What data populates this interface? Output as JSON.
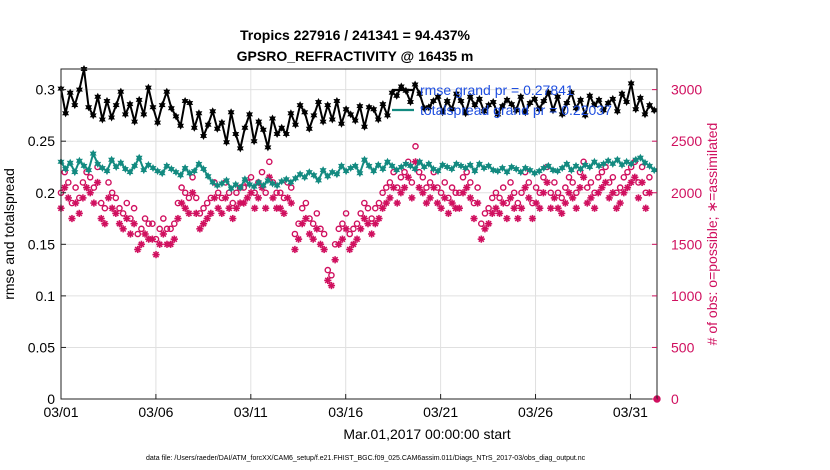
{
  "chart_data": {
    "type": "line",
    "title": "Tropics 227916 / 241341 = 94.437%",
    "subtitle": "GPSRO_REFRACTIVITY @ 16435 m",
    "xlabel": "Mar.01,2017 00:00:00 start",
    "ylabel_left": "rmse and totalspread",
    "ylabel_right": "# of obs: o=possible; ∗=assimilated",
    "x_ticks": [
      "03/01",
      "03/06",
      "03/11",
      "03/16",
      "03/21",
      "03/26",
      "03/31"
    ],
    "xlim": [
      0,
      31.4
    ],
    "ylim_left": [
      0,
      0.32
    ],
    "ylim_right": [
      0,
      3200
    ],
    "y_ticks_left": [
      "0",
      "0.05",
      "0.1",
      "0.15",
      "0.2",
      "0.25",
      "0.3"
    ],
    "y_ticks_right": [
      "0",
      "500",
      "1000",
      "1500",
      "2000",
      "2500",
      "3000"
    ],
    "legend": [
      {
        "label": "rmse grand pr = 0.27841",
        "color": "#000000"
      },
      {
        "label": "totalspread grand pr = 0.22037",
        "color": "#138a80"
      }
    ],
    "series": [
      {
        "name": "rmse",
        "axis": "left",
        "color": "#000000",
        "marker": "hexagram",
        "values": [
          0.301,
          0.277,
          0.297,
          0.285,
          0.3,
          0.32,
          0.283,
          0.275,
          0.293,
          0.271,
          0.289,
          0.273,
          0.285,
          0.298,
          0.276,
          0.286,
          0.269,
          0.29,
          0.276,
          0.302,
          0.283,
          0.268,
          0.285,
          0.298,
          0.282,
          0.274,
          0.265,
          0.289,
          0.287,
          0.263,
          0.277,
          0.255,
          0.266,
          0.279,
          0.262,
          0.268,
          0.249,
          0.278,
          0.257,
          0.243,
          0.263,
          0.276,
          0.25,
          0.269,
          0.261,
          0.244,
          0.272,
          0.257,
          0.263,
          0.257,
          0.277,
          0.266,
          0.285,
          0.278,
          0.262,
          0.275,
          0.288,
          0.269,
          0.285,
          0.271,
          0.289,
          0.267,
          0.281,
          0.276,
          0.27,
          0.284,
          0.264,
          0.283,
          0.281,
          0.271,
          0.286,
          0.275,
          0.297,
          0.294,
          0.303,
          0.299,
          0.288,
          0.305,
          0.296,
          0.282,
          0.283,
          0.289,
          0.293,
          0.278,
          0.289,
          0.281,
          0.296,
          0.289,
          0.277,
          0.293,
          0.285,
          0.291,
          0.279,
          0.285,
          0.288,
          0.276,
          0.284,
          0.29,
          0.286,
          0.28,
          0.293,
          0.278,
          0.287,
          0.291,
          0.281,
          0.289,
          0.297,
          0.28,
          0.293,
          0.276,
          0.287,
          0.297,
          0.282,
          0.29,
          0.275,
          0.294,
          0.285,
          0.29,
          0.28,
          0.287,
          0.291,
          0.279,
          0.296,
          0.288,
          0.306,
          0.281,
          0.292,
          0.276,
          0.285,
          0.28
        ]
      },
      {
        "name": "totalspread",
        "axis": "left",
        "color": "#138a80",
        "marker": "hexagram",
        "values": [
          0.23,
          0.223,
          0.229,
          0.22,
          0.231,
          0.226,
          0.222,
          0.238,
          0.228,
          0.224,
          0.221,
          0.232,
          0.225,
          0.229,
          0.223,
          0.22,
          0.226,
          0.234,
          0.222,
          0.227,
          0.224,
          0.221,
          0.219,
          0.226,
          0.223,
          0.22,
          0.217,
          0.224,
          0.219,
          0.221,
          0.228,
          0.223,
          0.216,
          0.21,
          0.207,
          0.209,
          0.212,
          0.204,
          0.208,
          0.205,
          0.213,
          0.208,
          0.206,
          0.21,
          0.207,
          0.212,
          0.209,
          0.207,
          0.211,
          0.213,
          0.21,
          0.214,
          0.218,
          0.215,
          0.22,
          0.217,
          0.212,
          0.222,
          0.216,
          0.22,
          0.218,
          0.226,
          0.221,
          0.224,
          0.226,
          0.219,
          0.232,
          0.226,
          0.221,
          0.227,
          0.223,
          0.23,
          0.226,
          0.222,
          0.225,
          0.228,
          0.226,
          0.223,
          0.23,
          0.225,
          0.228,
          0.223,
          0.221,
          0.227,
          0.225,
          0.223,
          0.228,
          0.226,
          0.224,
          0.227,
          0.221,
          0.228,
          0.224,
          0.226,
          0.222,
          0.221,
          0.224,
          0.22,
          0.225,
          0.223,
          0.22,
          0.224,
          0.222,
          0.219,
          0.221,
          0.224,
          0.226,
          0.222,
          0.221,
          0.224,
          0.228,
          0.222,
          0.226,
          0.223,
          0.227,
          0.225,
          0.23,
          0.226,
          0.228,
          0.231,
          0.228,
          0.232,
          0.227,
          0.23,
          0.228,
          0.232,
          0.234,
          0.229,
          0.226,
          0.222
        ]
      },
      {
        "name": "possible",
        "axis": "right",
        "color": "#d0105f",
        "marker": "circle",
        "values": [
          2000,
          2200,
          2100,
          1900,
          2050,
          1950,
          2100,
          2200,
          2150,
          2050,
          2250,
          1900,
          1850,
          2100,
          2000,
          1950,
          1850,
          1800,
          1900,
          1750,
          1850,
          1600,
          1650,
          1750,
          1700,
          1700,
          1550,
          1650,
          1750,
          1650,
          1650,
          1700,
          1900,
          2050,
          2000,
          1950,
          2150,
          1950,
          1800,
          1850,
          1900,
          1950,
          2100,
          2000,
          1950,
          2100,
          2000,
          1900,
          2000,
          2050,
          2050,
          2100,
          2150,
          2000,
          2100,
          2200,
          2000,
          2300,
          2100,
          2000,
          2000,
          1950,
          2100,
          2050,
          1600,
          1700,
          1850,
          1900,
          1750,
          1700,
          1800,
          1650,
          1600,
          1250,
          1200,
          1500,
          1650,
          1700,
          1800,
          1600,
          1650,
          1700,
          1800,
          1900,
          1850,
          1750,
          1850,
          1900,
          2000,
          2050,
          2100,
          2200,
          2050,
          2150,
          2200,
          2300,
          2100,
          2450,
          2200,
          2150,
          2050,
          2100,
          2200,
          2050,
          2000,
          2100,
          1950,
          2050,
          2000,
          2000,
          2150,
          2200,
          2100,
          1900,
          2050,
          1700,
          1800,
          1850,
          1950,
          2000,
          1950,
          2050,
          1900,
          2100,
          2000,
          1900,
          2000,
          2200,
          2100,
          1900,
          2050,
          2000,
          2150,
          2250,
          2000,
          2100,
          2000,
          1950,
          2050,
          2150,
          2100,
          2000,
          2200,
          2300,
          2050,
          2100,
          2000,
          2150,
          2200,
          2250,
          2100,
          2150,
          2000,
          2050,
          2150,
          2200,
          2250,
          2300,
          2100,
          2250,
          2000,
          2150
        ]
      },
      {
        "name": "assimilated",
        "axis": "right",
        "color": "#d0105f",
        "marker": "asterisk",
        "values": [
          1850,
          2050,
          1950,
          1750,
          1900,
          1800,
          1950,
          2050,
          2000,
          1900,
          2100,
          1750,
          1700,
          1950,
          1850,
          1800,
          1700,
          1650,
          1750,
          1600,
          1700,
          1450,
          1500,
          1600,
          1550,
          1550,
          1400,
          1500,
          1600,
          1500,
          1500,
          1550,
          1750,
          1900,
          1850,
          1800,
          2000,
          1800,
          1650,
          1700,
          1750,
          1800,
          1950,
          1850,
          1800,
          1950,
          1850,
          1750,
          1850,
          1900,
          1900,
          1950,
          2000,
          1850,
          1950,
          2050,
          1850,
          2150,
          1950,
          1850,
          1850,
          1800,
          1950,
          1900,
          1450,
          1550,
          1700,
          1750,
          1600,
          1550,
          1650,
          1500,
          1450,
          1150,
          1100,
          1350,
          1500,
          1550,
          1650,
          1450,
          1500,
          1550,
          1650,
          1750,
          1700,
          1600,
          1700,
          1750,
          1850,
          1900,
          1950,
          2050,
          1900,
          2000,
          2050,
          2150,
          1950,
          2300,
          2050,
          2000,
          1900,
          1950,
          2050,
          1900,
          1850,
          1950,
          1800,
          1900,
          1850,
          1850,
          2000,
          2050,
          1950,
          1750,
          1900,
          1550,
          1650,
          1700,
          1800,
          1850,
          1800,
          1900,
          1750,
          1950,
          1850,
          1750,
          1850,
          2050,
          1950,
          1750,
          1900,
          1850,
          2000,
          2100,
          1850,
          1950,
          1850,
          1800,
          1900,
          2000,
          1950,
          1850,
          2050,
          2150,
          1900,
          1950,
          1850,
          2000,
          2050,
          2100,
          1950,
          2000,
          1850,
          1900,
          2000,
          2050,
          2100,
          2150,
          1950,
          2100,
          1850,
          2000
        ]
      }
    ]
  },
  "footer": "data file: /Users/raeder/DAI/ATM_forcXX/CAM6_setup/f.e21.FHIST_BGC.f09_025.CAM6assim.011/Diags_NTrS_2017-03/obs_diag_output.nc"
}
